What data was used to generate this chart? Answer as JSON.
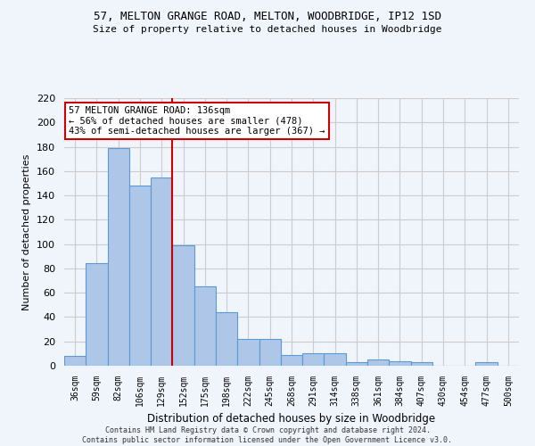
{
  "title_line1": "57, MELTON GRANGE ROAD, MELTON, WOODBRIDGE, IP12 1SD",
  "title_line2": "Size of property relative to detached houses in Woodbridge",
  "xlabel": "Distribution of detached houses by size in Woodbridge",
  "ylabel": "Number of detached properties",
  "footer_line1": "Contains HM Land Registry data © Crown copyright and database right 2024.",
  "footer_line2": "Contains public sector information licensed under the Open Government Licence v3.0.",
  "categories": [
    "36sqm",
    "59sqm",
    "82sqm",
    "106sqm",
    "129sqm",
    "152sqm",
    "175sqm",
    "198sqm",
    "222sqm",
    "245sqm",
    "268sqm",
    "291sqm",
    "314sqm",
    "338sqm",
    "361sqm",
    "384sqm",
    "407sqm",
    "430sqm",
    "454sqm",
    "477sqm",
    "500sqm"
  ],
  "values": [
    8,
    84,
    179,
    148,
    155,
    99,
    65,
    44,
    22,
    22,
    9,
    10,
    10,
    3,
    5,
    4,
    3,
    0,
    0,
    3,
    0
  ],
  "bar_color": "#aec6e8",
  "bar_edge_color": "#5b9bd5",
  "vline_x": 4.5,
  "vline_color": "#cc0000",
  "annotation_title": "57 MELTON GRANGE ROAD: 136sqm",
  "annotation_line1": "← 56% of detached houses are smaller (478)",
  "annotation_line2": "43% of semi-detached houses are larger (367) →",
  "annotation_box_color": "#ffffff",
  "annotation_box_edge": "#cc0000",
  "ylim": [
    0,
    220
  ],
  "yticks": [
    0,
    20,
    40,
    60,
    80,
    100,
    120,
    140,
    160,
    180,
    200,
    220
  ],
  "grid_color": "#cccccc",
  "bg_color": "#f0f4fb"
}
